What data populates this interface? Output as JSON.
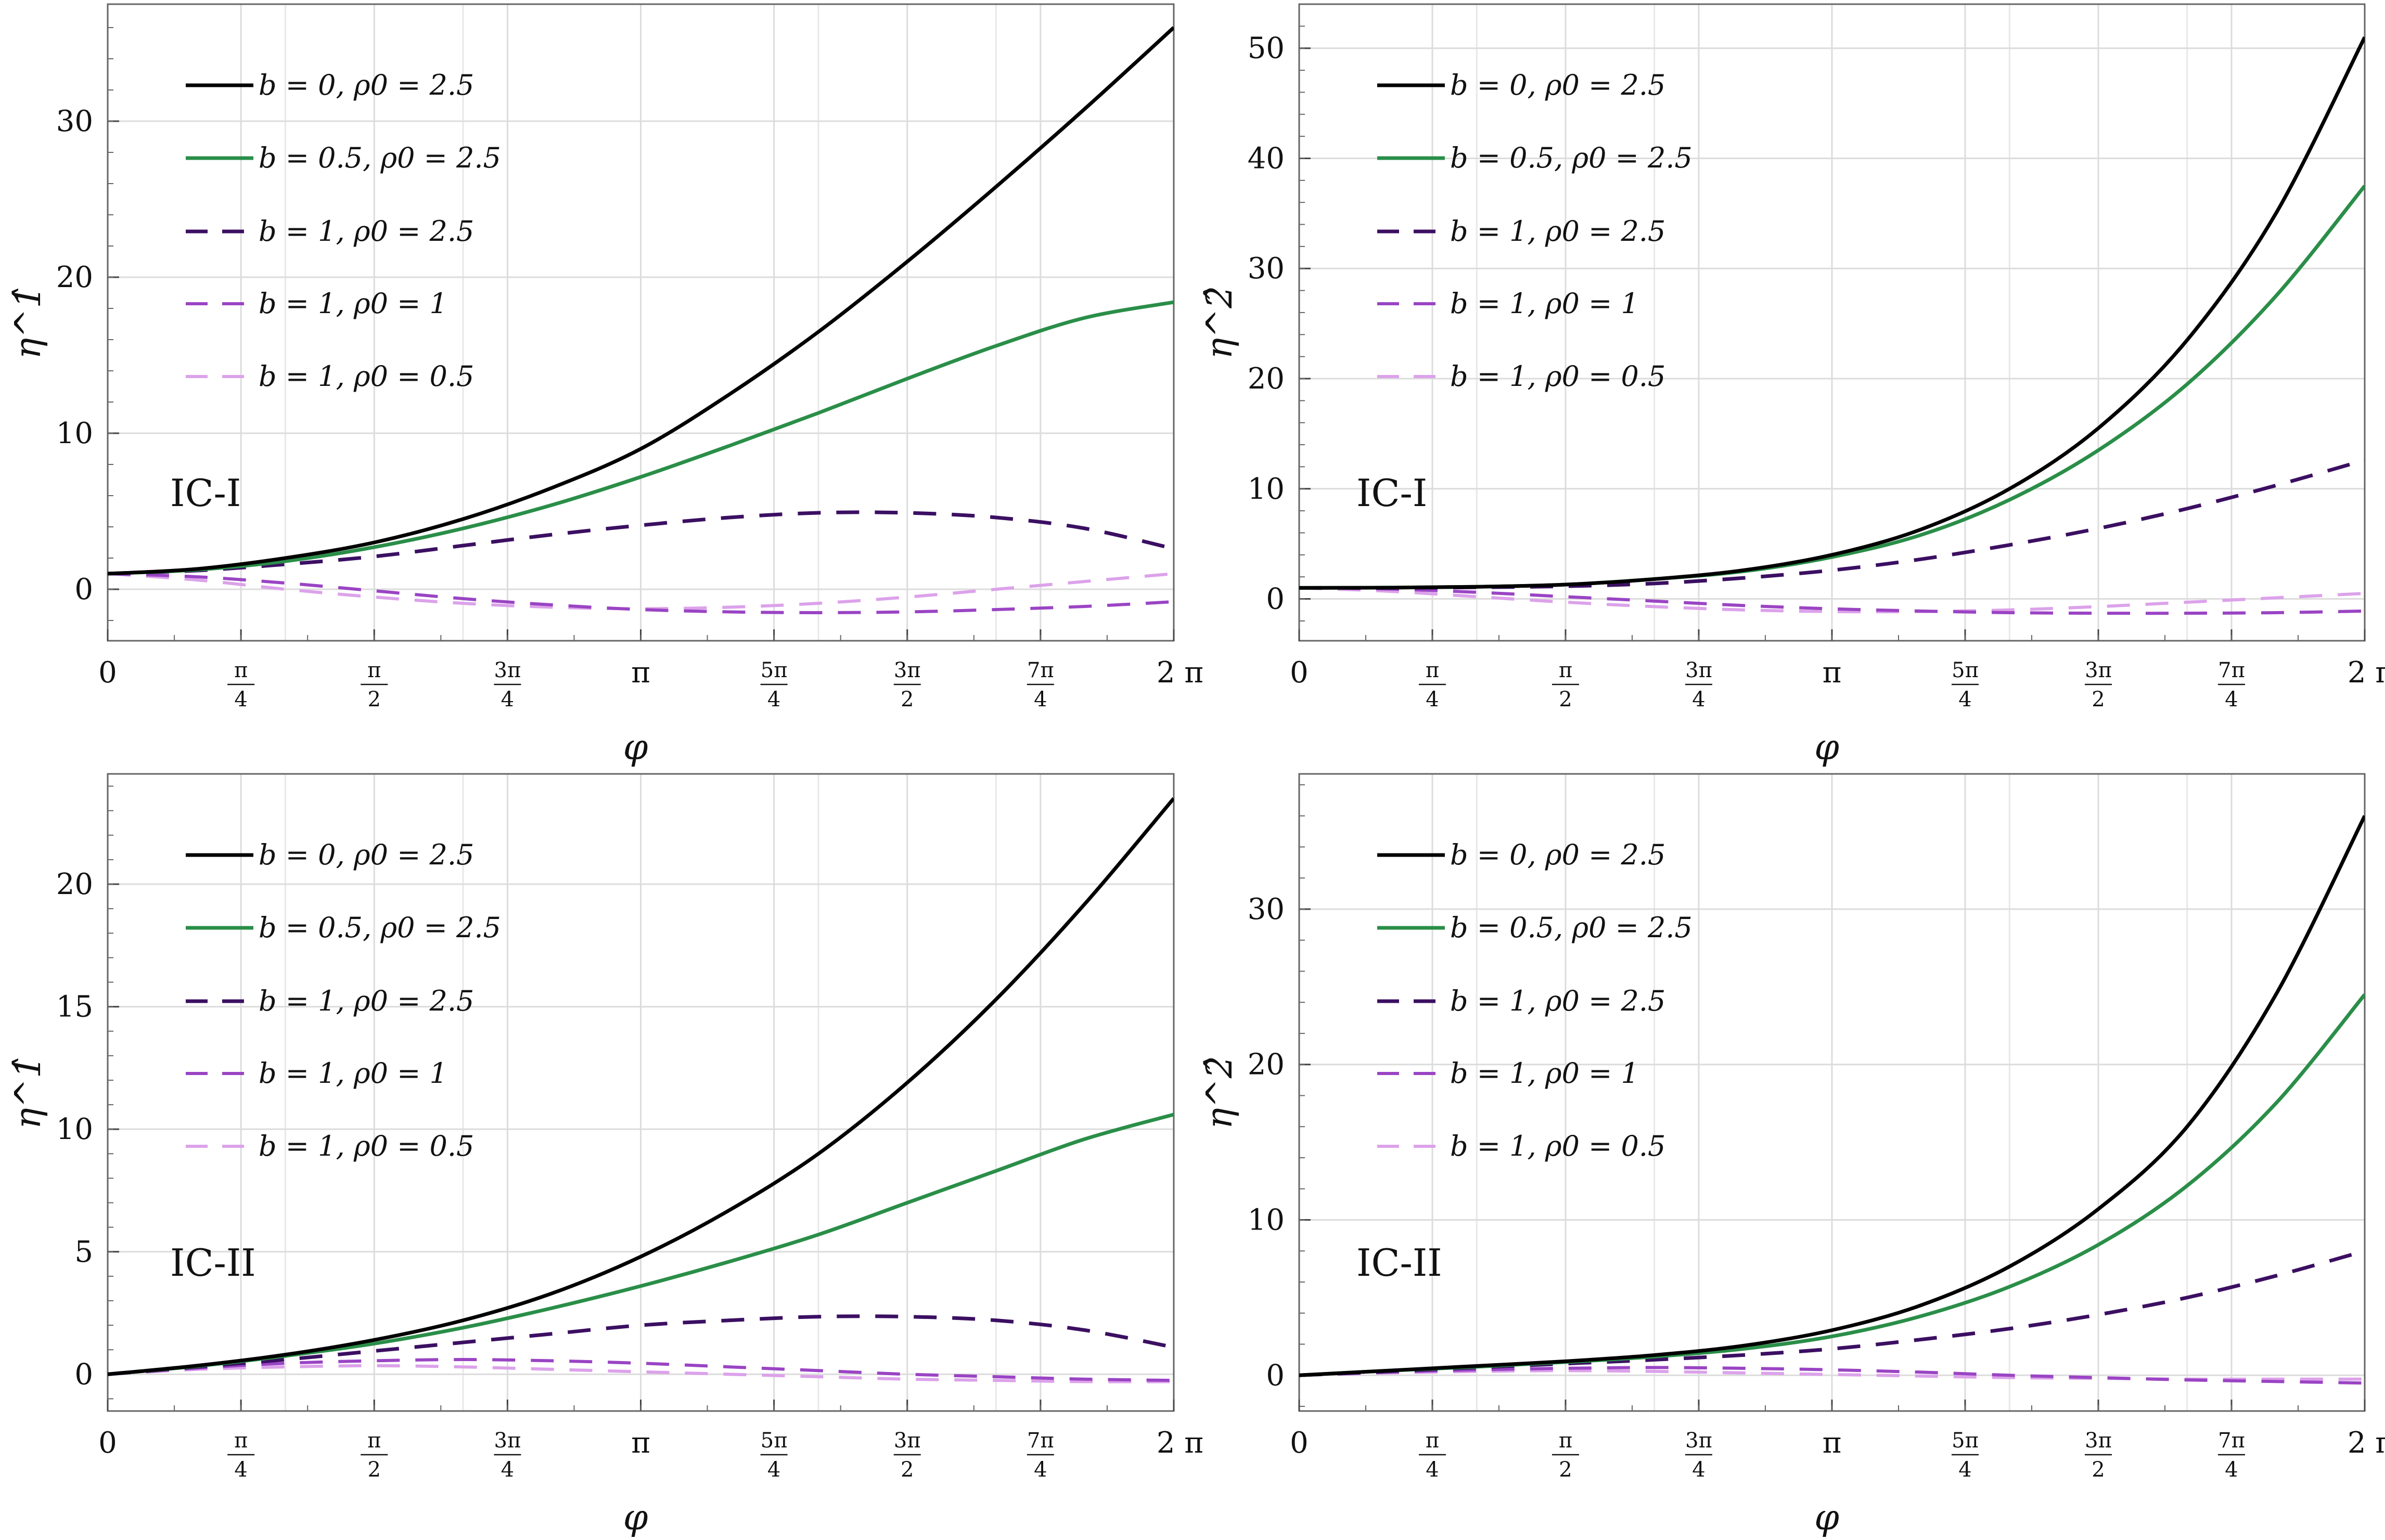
{
  "colors": {
    "b0_rho2.5": "#000000",
    "b0.5_rho2.5": "#2a8e48",
    "b1_rho2.5": "#3b0f62",
    "b1_rho1": "#9a44c4",
    "b1_rho0.5": "#dca2ea",
    "grid": "#dcdcdc",
    "axis": "#666666"
  },
  "chart_data": [
    {
      "type": "line",
      "panel": "top-left",
      "label": "IC-I",
      "xlabel": "φ",
      "ylabel": "η^1̂",
      "xlim": [
        0,
        6.2832
      ],
      "ylim": [
        -3.3,
        37.5
      ],
      "x": [
        0,
        0.5236,
        1.0472,
        1.5708,
        2.0944,
        2.618,
        3.1416,
        3.6652,
        4.1888,
        4.7124,
        5.236,
        5.7596,
        6.2832
      ],
      "xticks": [
        {
          "label": "0",
          "value": 0
        },
        {
          "num": "π",
          "den": "4",
          "value": 0.7854
        },
        {
          "num": "π",
          "den": "2",
          "value": 1.5708
        },
        {
          "num": "3π",
          "den": "4",
          "value": 2.3562
        },
        {
          "label": "π",
          "value": 3.1416
        },
        {
          "num": "5π",
          "den": "4",
          "value": 3.927
        },
        {
          "num": "3π",
          "den": "2",
          "value": 4.7124
        },
        {
          "num": "7π",
          "den": "4",
          "value": 5.4978
        },
        {
          "label": "2 π",
          "value": 6.2832
        }
      ],
      "yticks": [
        0,
        10,
        20,
        30
      ],
      "series": [
        {
          "name": "b = 0,  ρ0 = 2.5",
          "dashed": false,
          "values": [
            1,
            1.3,
            2.0,
            3.0,
            4.5,
            6.5,
            9.0,
            12.5,
            16.5,
            21.0,
            25.8,
            30.8,
            36.0
          ]
        },
        {
          "name": "b = 0.5,  ρ0 = 2.5",
          "dashed": false,
          "values": [
            1,
            1.25,
            1.8,
            2.7,
            3.9,
            5.4,
            7.2,
            9.2,
            11.3,
            13.5,
            15.6,
            17.4,
            18.4
          ]
        },
        {
          "name": "b = 1,  ρ0 = 2.5",
          "dashed": true,
          "values": [
            1,
            1.2,
            1.6,
            2.1,
            2.8,
            3.5,
            4.1,
            4.6,
            4.9,
            4.9,
            4.6,
            3.9,
            2.6
          ]
        },
        {
          "name": "b = 1,  ρ0 = 1",
          "dashed": true,
          "values": [
            1,
            0.8,
            0.4,
            -0.1,
            -0.6,
            -1.0,
            -1.3,
            -1.45,
            -1.5,
            -1.45,
            -1.3,
            -1.1,
            -0.8
          ]
        },
        {
          "name": "b = 1,  ρ0 = 0.5",
          "dashed": true,
          "values": [
            1,
            0.6,
            0.0,
            -0.5,
            -0.9,
            -1.15,
            -1.25,
            -1.15,
            -0.9,
            -0.5,
            0.0,
            0.5,
            1.0
          ]
        }
      ]
    },
    {
      "type": "line",
      "panel": "top-right",
      "label": "IC-I",
      "xlabel": "φ",
      "ylabel": "η^2̂",
      "xlim": [
        0,
        6.2832
      ],
      "ylim": [
        -3.8,
        54.0
      ],
      "x": [
        0,
        0.5236,
        1.0472,
        1.5708,
        2.0944,
        2.618,
        3.1416,
        3.6652,
        4.1888,
        4.7124,
        5.236,
        5.7596,
        6.2832
      ],
      "xticks": [
        {
          "label": "0",
          "value": 0
        },
        {
          "num": "π",
          "den": "4",
          "value": 0.7854
        },
        {
          "num": "π",
          "den": "2",
          "value": 1.5708
        },
        {
          "num": "3π",
          "den": "4",
          "value": 2.3562
        },
        {
          "label": "π",
          "value": 3.1416
        },
        {
          "num": "5π",
          "den": "4",
          "value": 3.927
        },
        {
          "num": "3π",
          "den": "2",
          "value": 4.7124
        },
        {
          "num": "7π",
          "den": "4",
          "value": 5.4978
        },
        {
          "label": "2 π",
          "value": 6.2832
        }
      ],
      "yticks": [
        0,
        10,
        20,
        30,
        40,
        50
      ],
      "series": [
        {
          "name": "b = 0,  ρ0 = 2.5",
          "dashed": false,
          "values": [
            1,
            1.02,
            1.1,
            1.3,
            1.8,
            2.6,
            4.0,
            6.3,
            10.0,
            15.5,
            23.5,
            35.0,
            51.0
          ]
        },
        {
          "name": "b = 0.5,  ρ0 = 2.5",
          "dashed": false,
          "values": [
            1,
            1.02,
            1.1,
            1.3,
            1.8,
            2.5,
            3.8,
            5.8,
            9.0,
            13.5,
            19.5,
            27.5,
            37.5
          ]
        },
        {
          "name": "b = 1,  ρ0 = 2.5",
          "dashed": true,
          "values": [
            1,
            1.0,
            1.05,
            1.15,
            1.4,
            1.9,
            2.6,
            3.6,
            4.9,
            6.4,
            8.2,
            10.3,
            12.6
          ]
        },
        {
          "name": "b = 1,  ρ0 = 1",
          "dashed": true,
          "values": [
            1,
            0.9,
            0.6,
            0.2,
            -0.2,
            -0.6,
            -0.9,
            -1.1,
            -1.25,
            -1.3,
            -1.3,
            -1.25,
            -1.1
          ]
        },
        {
          "name": "b = 1,  ρ0 = 0.5",
          "dashed": true,
          "values": [
            1,
            0.7,
            0.2,
            -0.3,
            -0.7,
            -1.0,
            -1.15,
            -1.15,
            -1.0,
            -0.7,
            -0.3,
            0.1,
            0.5
          ]
        }
      ]
    },
    {
      "type": "line",
      "panel": "bottom-left",
      "label": "IC-II",
      "xlabel": "φ",
      "ylabel": "η^1̂",
      "xlim": [
        0,
        6.2832
      ],
      "ylim": [
        -1.5,
        24.5
      ],
      "x": [
        0,
        0.5236,
        1.0472,
        1.5708,
        2.0944,
        2.618,
        3.1416,
        3.6652,
        4.1888,
        4.7124,
        5.236,
        5.7596,
        6.2832
      ],
      "xticks": [
        {
          "label": "0",
          "value": 0
        },
        {
          "num": "π",
          "den": "4",
          "value": 0.7854
        },
        {
          "num": "π",
          "den": "2",
          "value": 1.5708
        },
        {
          "num": "3π",
          "den": "4",
          "value": 2.3562
        },
        {
          "label": "π",
          "value": 3.1416
        },
        {
          "num": "5π",
          "den": "4",
          "value": 3.927
        },
        {
          "num": "3π",
          "den": "2",
          "value": 4.7124
        },
        {
          "num": "7π",
          "den": "4",
          "value": 5.4978
        },
        {
          "label": "2 π",
          "value": 6.2832
        }
      ],
      "yticks": [
        0,
        5,
        10,
        15,
        20
      ],
      "series": [
        {
          "name": "b = 0,  ρ0 = 2.5",
          "dashed": false,
          "values": [
            0,
            0.35,
            0.8,
            1.4,
            2.2,
            3.3,
            4.8,
            6.7,
            9.0,
            11.9,
            15.3,
            19.2,
            23.5
          ]
        },
        {
          "name": "b = 0.5,  ρ0 = 2.5",
          "dashed": false,
          "values": [
            0,
            0.33,
            0.75,
            1.25,
            1.9,
            2.7,
            3.6,
            4.6,
            5.7,
            7.0,
            8.3,
            9.6,
            10.6
          ]
        },
        {
          "name": "b = 1,  ρ0 = 2.5",
          "dashed": true,
          "values": [
            0,
            0.3,
            0.6,
            0.95,
            1.3,
            1.65,
            2.0,
            2.2,
            2.35,
            2.35,
            2.2,
            1.8,
            1.1
          ]
        },
        {
          "name": "b = 1,  ρ0 = 1",
          "dashed": true,
          "values": [
            0,
            0.25,
            0.45,
            0.55,
            0.6,
            0.55,
            0.45,
            0.3,
            0.15,
            0.0,
            -0.1,
            -0.2,
            -0.25
          ]
        },
        {
          "name": "b = 1,  ρ0 = 0.5",
          "dashed": true,
          "values": [
            0,
            0.2,
            0.3,
            0.35,
            0.3,
            0.2,
            0.1,
            0.0,
            -0.1,
            -0.2,
            -0.25,
            -0.3,
            -0.3
          ]
        }
      ]
    },
    {
      "type": "line",
      "panel": "bottom-right",
      "label": "IC-II",
      "xlabel": "φ",
      "ylabel": "η^2̂",
      "xlim": [
        0,
        6.2832
      ],
      "ylim": [
        -2.3,
        38.7
      ],
      "x": [
        0,
        0.5236,
        1.0472,
        1.5708,
        2.0944,
        2.618,
        3.1416,
        3.6652,
        4.1888,
        4.7124,
        5.236,
        5.7596,
        6.2832
      ],
      "xticks": [
        {
          "label": "0",
          "value": 0
        },
        {
          "num": "π",
          "den": "4",
          "value": 0.7854
        },
        {
          "num": "π",
          "den": "2",
          "value": 1.5708
        },
        {
          "num": "3π",
          "den": "4",
          "value": 2.3562
        },
        {
          "label": "π",
          "value": 3.1416
        },
        {
          "num": "5π",
          "den": "4",
          "value": 3.927
        },
        {
          "num": "3π",
          "den": "2",
          "value": 4.7124
        },
        {
          "num": "7π",
          "den": "4",
          "value": 5.4978
        },
        {
          "label": "2 π",
          "value": 6.2832
        }
      ],
      "yticks": [
        0,
        10,
        20,
        30
      ],
      "series": [
        {
          "name": "b = 0,  ρ0 = 2.5",
          "dashed": false,
          "values": [
            0,
            0.3,
            0.6,
            0.9,
            1.3,
            1.9,
            2.9,
            4.5,
            7.0,
            10.7,
            16.0,
            24.5,
            36.0
          ]
        },
        {
          "name": "b = 0.5,  ρ0 = 2.5",
          "dashed": false,
          "values": [
            0,
            0.3,
            0.55,
            0.85,
            1.2,
            1.7,
            2.5,
            3.8,
            5.7,
            8.4,
            12.2,
            17.5,
            24.5
          ]
        },
        {
          "name": "b = 1,  ρ0 = 2.5",
          "dashed": true,
          "values": [
            0,
            0.25,
            0.5,
            0.75,
            1.0,
            1.3,
            1.7,
            2.3,
            3.0,
            3.9,
            5.0,
            6.4,
            8.0
          ]
        },
        {
          "name": "b = 1,  ρ0 = 1",
          "dashed": true,
          "values": [
            0,
            0.2,
            0.35,
            0.45,
            0.5,
            0.45,
            0.35,
            0.2,
            0.0,
            -0.15,
            -0.3,
            -0.4,
            -0.5
          ]
        },
        {
          "name": "b = 1,  ρ0 = 0.5",
          "dashed": true,
          "values": [
            0,
            0.15,
            0.25,
            0.3,
            0.25,
            0.15,
            0.05,
            -0.05,
            -0.15,
            -0.2,
            -0.25,
            -0.25,
            -0.25
          ]
        }
      ]
    }
  ]
}
